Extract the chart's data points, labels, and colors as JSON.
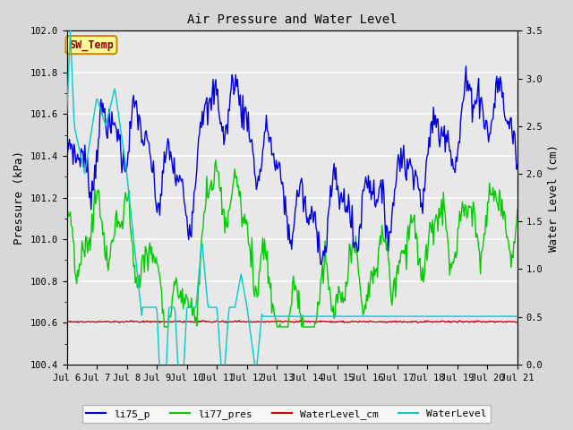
{
  "title": "Air Pressure and Water Level",
  "ylabel_left": "Pressure (kPa)",
  "ylabel_right": "Water Level (cm)",
  "ylim_left": [
    100.4,
    102.0
  ],
  "ylim_right": [
    0.0,
    3.5
  ],
  "xtick_labels": [
    "Jul 6",
    "Jul 7",
    "Jul 8",
    "Jul 9",
    "Jul 10",
    "Jul 11",
    "Jul 12",
    "Jul 13",
    "Jul 14",
    "Jul 15",
    "Jul 16",
    "Jul 17",
    "Jul 18",
    "Jul 19",
    "Jul 20",
    "Jul 21"
  ],
  "yticks_left": [
    100.4,
    100.6,
    100.8,
    101.0,
    101.2,
    101.4,
    101.6,
    101.8,
    102.0
  ],
  "yticks_right": [
    0.0,
    0.5,
    1.0,
    1.5,
    2.0,
    2.5,
    3.0,
    3.5
  ],
  "bg_color": "#d8d8d8",
  "plot_bg_color": "#e8e8e8",
  "line_colors": [
    "#0000dd",
    "#00cc00",
    "#cc0000",
    "#00cccc"
  ],
  "annotation_text": "SW_Temp",
  "annotation_fg": "#8b0000",
  "annotation_bg": "#ffff99",
  "annotation_border": "#cc8800",
  "legend_items": [
    "li75_p",
    "li77_pres",
    "WaterLevel_cm",
    "WaterLevel"
  ]
}
